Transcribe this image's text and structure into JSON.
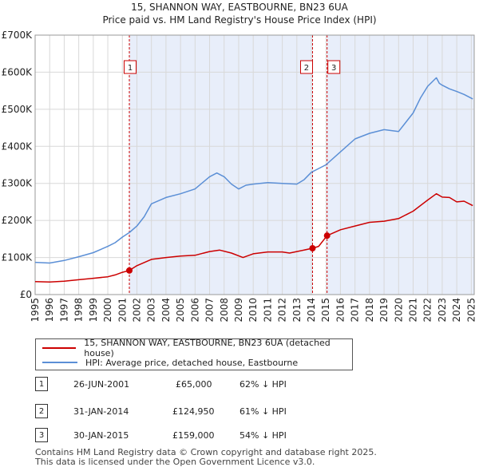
{
  "chart_data": {
    "type": "line",
    "title": "15, SHANNON WAY, EASTBOURNE, BN23 6UA",
    "subtitle": "Price paid vs. HM Land Registry's House Price Index (HPI)",
    "xlim": [
      1995,
      2025.2
    ],
    "ylim": [
      0,
      700000
    ],
    "y_ticks": [
      {
        "value": 0,
        "label": "£0"
      },
      {
        "value": 100000,
        "label": "£100K"
      },
      {
        "value": 200000,
        "label": "£200K"
      },
      {
        "value": 300000,
        "label": "£300K"
      },
      {
        "value": 400000,
        "label": "£400K"
      },
      {
        "value": 500000,
        "label": "£500K"
      },
      {
        "value": 600000,
        "label": "£600K"
      },
      {
        "value": 700000,
        "label": "£700K"
      }
    ],
    "x_ticks": [
      "1995",
      "1996",
      "1997",
      "1998",
      "1999",
      "2000",
      "2001",
      "2002",
      "2003",
      "2004",
      "2005",
      "2006",
      "2007",
      "2008",
      "2009",
      "2010",
      "2011",
      "2012",
      "2013",
      "2014",
      "2015",
      "2016",
      "2017",
      "2018",
      "2019",
      "2020",
      "2021",
      "2022",
      "2023",
      "2024",
      "2025"
    ],
    "shaded_ranges": [
      [
        2001.48,
        2014.08
      ],
      [
        2015.08,
        2025.2
      ]
    ],
    "series": [
      {
        "name": "15, SHANNON WAY, EASTBOURNE, BN23 6UA (detached house)",
        "color": "#cc0000",
        "x": [
          1995,
          1996,
          1997,
          1998,
          1999,
          2000,
          2000.5,
          2001,
          2001.48,
          2002,
          2003,
          2004,
          2005,
          2006,
          2007,
          2007.7,
          2008.5,
          2009.3,
          2010,
          2011,
          2012,
          2012.5,
          2013,
          2014.08,
          2014.5,
          2015.08,
          2016,
          2017,
          2018,
          2019,
          2020,
          2021,
          2022,
          2022.6,
          2023,
          2023.5,
          2024,
          2024.5,
          2025.1
        ],
        "values": [
          35000,
          34000,
          36000,
          40000,
          44000,
          48000,
          53000,
          60000,
          65000,
          78000,
          95000,
          100000,
          104000,
          106000,
          116000,
          120000,
          112000,
          100000,
          110000,
          115000,
          115000,
          112000,
          116000,
          124950,
          130000,
          159000,
          175000,
          185000,
          195000,
          198000,
          205000,
          225000,
          255000,
          272000,
          263000,
          262000,
          250000,
          252000,
          240000
        ]
      },
      {
        "name": "HPI: Average price, detached house, Eastbourne",
        "color": "#5b8fd6",
        "x": [
          1995,
          1996,
          1997,
          1998,
          1999,
          2000,
          2000.5,
          2001,
          2001.5,
          2002,
          2002.5,
          2003,
          2004,
          2005,
          2006,
          2007,
          2007.5,
          2008,
          2008.5,
          2009,
          2009.5,
          2010,
          2011,
          2012,
          2013,
          2013.5,
          2014,
          2015,
          2016,
          2017,
          2018,
          2019,
          2020,
          2020.5,
          2021,
          2021.5,
          2022,
          2022.6,
          2022.8,
          2023,
          2023.5,
          2024,
          2024.5,
          2025.1
        ],
        "values": [
          87000,
          85000,
          92000,
          102000,
          113000,
          130000,
          140000,
          155000,
          168000,
          185000,
          210000,
          245000,
          262000,
          272000,
          285000,
          318000,
          328000,
          318000,
          298000,
          285000,
          295000,
          298000,
          302000,
          300000,
          298000,
          310000,
          330000,
          350000,
          385000,
          420000,
          435000,
          445000,
          440000,
          465000,
          490000,
          530000,
          562000,
          585000,
          570000,
          565000,
          555000,
          548000,
          540000,
          528000
        ]
      }
    ],
    "sale_markers": [
      {
        "label": "1",
        "x": 2001.48,
        "value": 65000
      },
      {
        "label": "2",
        "x": 2014.08,
        "value": 124950
      },
      {
        "label": "3",
        "x": 2015.08,
        "value": 159000
      }
    ]
  },
  "legend": {
    "property_label": "15, SHANNON WAY, EASTBOURNE, BN23 6UA (detached house)",
    "hpi_label": "HPI: Average price, detached house, Eastbourne"
  },
  "sales": [
    {
      "num": "1",
      "date": "26-JUN-2001",
      "price": "£65,000",
      "hpi": "62% ↓ HPI"
    },
    {
      "num": "2",
      "date": "31-JAN-2014",
      "price": "£124,950",
      "hpi": "61% ↓ HPI"
    },
    {
      "num": "3",
      "date": "30-JAN-2015",
      "price": "£159,000",
      "hpi": "54% ↓ HPI"
    }
  ],
  "footer": {
    "line1": "Contains HM Land Registry data © Crown copyright and database right 2025.",
    "line2": "This data is licensed under the Open Government Licence v3.0."
  },
  "colors": {
    "property": "#cc0000",
    "hpi": "#5b8fd6",
    "shade": "#e8eefa"
  }
}
